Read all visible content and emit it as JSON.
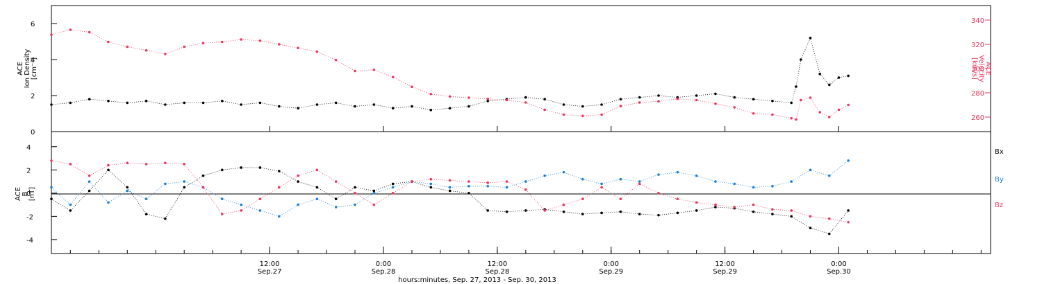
{
  "colors": {
    "frame": "#000000",
    "bx": "#000000",
    "by": "#1a7fd8",
    "bz": "#e8365d",
    "density": "#000000",
    "velocity": "#e8365d"
  },
  "time_axis": {
    "xlabel": "hours:minutes, Sep. 27, 2013 - Sep. 30, 2013",
    "ticks": [
      {
        "hours": 12,
        "top": "12:00",
        "bottom": "Sep.27"
      },
      {
        "hours": 24,
        "top": "0:00",
        "bottom": "Sep.28"
      },
      {
        "hours": 36,
        "top": "12:00",
        "bottom": "Sep.28"
      },
      {
        "hours": 48,
        "top": "0:00",
        "bottom": "Sep.29"
      },
      {
        "hours": 60,
        "top": "12:00",
        "bottom": "Sep.29"
      },
      {
        "hours": 72,
        "top": "0:00",
        "bottom": "Sep.30"
      }
    ]
  },
  "chart_data": [
    {
      "type": "scatter",
      "ylabel_left": [
        "ACE",
        "Ion Density",
        "[cm⁻³]"
      ],
      "ylabel_right": [
        "ACE",
        "Velocity",
        "[km/s]"
      ],
      "x_unit": "hours since Sep. 27, 2013 00:00",
      "xlim": [
        -11,
        88
      ],
      "ylim_left": [
        0,
        7
      ],
      "ylim_right": [
        248,
        352
      ],
      "yticks_left": [
        0,
        2,
        4,
        6
      ],
      "yticks_right": [
        260,
        280,
        300,
        320,
        340
      ],
      "series": [
        {
          "key": "density",
          "axis": "left",
          "x": [
            -11,
            -9,
            -7,
            -5,
            -3,
            -1,
            1,
            3,
            5,
            7,
            9,
            11,
            13,
            15,
            17,
            19,
            21,
            23,
            25,
            27,
            29,
            31,
            33,
            35,
            37,
            39,
            41,
            43,
            45,
            47,
            49,
            51,
            53,
            55,
            57,
            59,
            61,
            63,
            65,
            67,
            67.5,
            68,
            69,
            70,
            71,
            72,
            73
          ],
          "y": [
            1.5,
            1.6,
            1.8,
            1.7,
            1.6,
            1.7,
            1.5,
            1.6,
            1.6,
            1.7,
            1.5,
            1.6,
            1.4,
            1.3,
            1.5,
            1.6,
            1.4,
            1.5,
            1.3,
            1.4,
            1.2,
            1.3,
            1.4,
            1.7,
            1.8,
            1.9,
            1.8,
            1.5,
            1.4,
            1.5,
            1.8,
            1.9,
            2.0,
            1.9,
            2.0,
            2.1,
            1.9,
            1.8,
            1.7,
            1.6,
            2.5,
            4.0,
            5.2,
            3.2,
            2.6,
            3.0,
            3.1
          ]
        },
        {
          "key": "velocity",
          "axis": "right",
          "x": [
            -11,
            -9,
            -7,
            -5,
            -3,
            -1,
            1,
            3,
            5,
            7,
            9,
            11,
            13,
            15,
            17,
            19,
            21,
            23,
            25,
            27,
            29,
            31,
            33,
            35,
            37,
            39,
            41,
            43,
            45,
            47,
            49,
            51,
            53,
            55,
            57,
            59,
            61,
            63,
            65,
            67,
            67.5,
            68,
            69,
            70,
            71,
            72,
            73
          ],
          "y": [
            328,
            332,
            330,
            322,
            318,
            315,
            312,
            318,
            321,
            322,
            324,
            323,
            320,
            317,
            314,
            307,
            298,
            299,
            293,
            285,
            279,
            277,
            276,
            275,
            274,
            272,
            266,
            262,
            261,
            262,
            269,
            272,
            273,
            275,
            274,
            271,
            268,
            263,
            262,
            259,
            258,
            274,
            276,
            264,
            260,
            266,
            270
          ]
        }
      ]
    },
    {
      "type": "scatter",
      "ylabel_left": [
        "ACE",
        "B",
        "[nT]"
      ],
      "x_unit": "hours since Sep. 27, 2013 00:00",
      "xlim": [
        -11,
        88
      ],
      "ylim": [
        -5.2,
        5.3
      ],
      "yticks": [
        -4,
        -2,
        0,
        2,
        4
      ],
      "legend": [
        "Bx",
        "By",
        "Bz"
      ],
      "legend_placement": "right",
      "series": [
        {
          "key": "bx",
          "name": "Bx",
          "x": [
            -11,
            -9,
            -7,
            -5,
            -3,
            -1,
            1,
            3,
            5,
            7,
            9,
            11,
            13,
            15,
            17,
            19,
            21,
            23,
            25,
            27,
            29,
            31,
            33,
            35,
            37,
            39,
            41,
            43,
            45,
            47,
            49,
            51,
            53,
            55,
            57,
            59,
            61,
            63,
            65,
            67,
            69,
            71,
            73
          ],
          "y": [
            -0.5,
            -1.5,
            0.2,
            2.0,
            0.5,
            -1.8,
            -2.2,
            0.5,
            1.5,
            2.0,
            2.2,
            2.2,
            1.9,
            1.0,
            0.5,
            -0.5,
            0.5,
            0.2,
            0.8,
            1.0,
            0.5,
            0.2,
            0.0,
            -1.5,
            -1.6,
            -1.5,
            -1.4,
            -1.6,
            -1.8,
            -1.7,
            -1.6,
            -1.8,
            -1.9,
            -1.7,
            -1.5,
            -1.2,
            -1.3,
            -1.6,
            -1.8,
            -2.0,
            -3.0,
            -3.5,
            -1.5
          ]
        },
        {
          "key": "by",
          "name": "By",
          "x": [
            -11,
            -9,
            -7,
            -5,
            -3,
            -1,
            1,
            3,
            5,
            7,
            9,
            11,
            13,
            15,
            17,
            19,
            21,
            23,
            25,
            27,
            29,
            31,
            33,
            35,
            37,
            39,
            41,
            43,
            45,
            47,
            49,
            51,
            53,
            55,
            57,
            59,
            61,
            63,
            65,
            67,
            69,
            71,
            73
          ],
          "y": [
            0.5,
            -1.0,
            1.0,
            -0.8,
            0.2,
            -0.5,
            0.8,
            1.0,
            0.5,
            -0.5,
            -1.0,
            -1.5,
            -2.0,
            -1.0,
            -0.5,
            -1.2,
            -1.0,
            0.0,
            0.5,
            1.0,
            0.8,
            0.5,
            0.6,
            0.6,
            0.5,
            1.0,
            1.5,
            1.8,
            1.2,
            0.8,
            1.2,
            1.0,
            1.6,
            1.8,
            1.5,
            1.0,
            0.8,
            0.5,
            0.6,
            1.0,
            2.0,
            1.5,
            2.8
          ]
        },
        {
          "key": "bz",
          "name": "Bz",
          "x": [
            -11,
            -9,
            -7,
            -5,
            -3,
            -1,
            1,
            3,
            5,
            7,
            9,
            11,
            13,
            15,
            17,
            19,
            21,
            23,
            25,
            27,
            29,
            31,
            33,
            35,
            37,
            39,
            41,
            43,
            45,
            47,
            49,
            51,
            53,
            55,
            57,
            59,
            61,
            63,
            65,
            67,
            69,
            71,
            73
          ],
          "y": [
            2.8,
            2.5,
            1.5,
            2.4,
            2.6,
            2.5,
            2.6,
            2.5,
            0.5,
            -1.8,
            -1.5,
            -0.5,
            0.5,
            1.5,
            2.0,
            1.0,
            0.0,
            -1.0,
            0.0,
            1.0,
            1.2,
            1.1,
            1.0,
            0.9,
            1.0,
            0.3,
            -1.5,
            -1.0,
            -0.5,
            0.5,
            -0.5,
            0.8,
            0.0,
            -0.5,
            -0.8,
            -1.0,
            -1.2,
            -1.0,
            -1.4,
            -1.5,
            -2.0,
            -2.2,
            -2.5
          ]
        }
      ]
    }
  ]
}
